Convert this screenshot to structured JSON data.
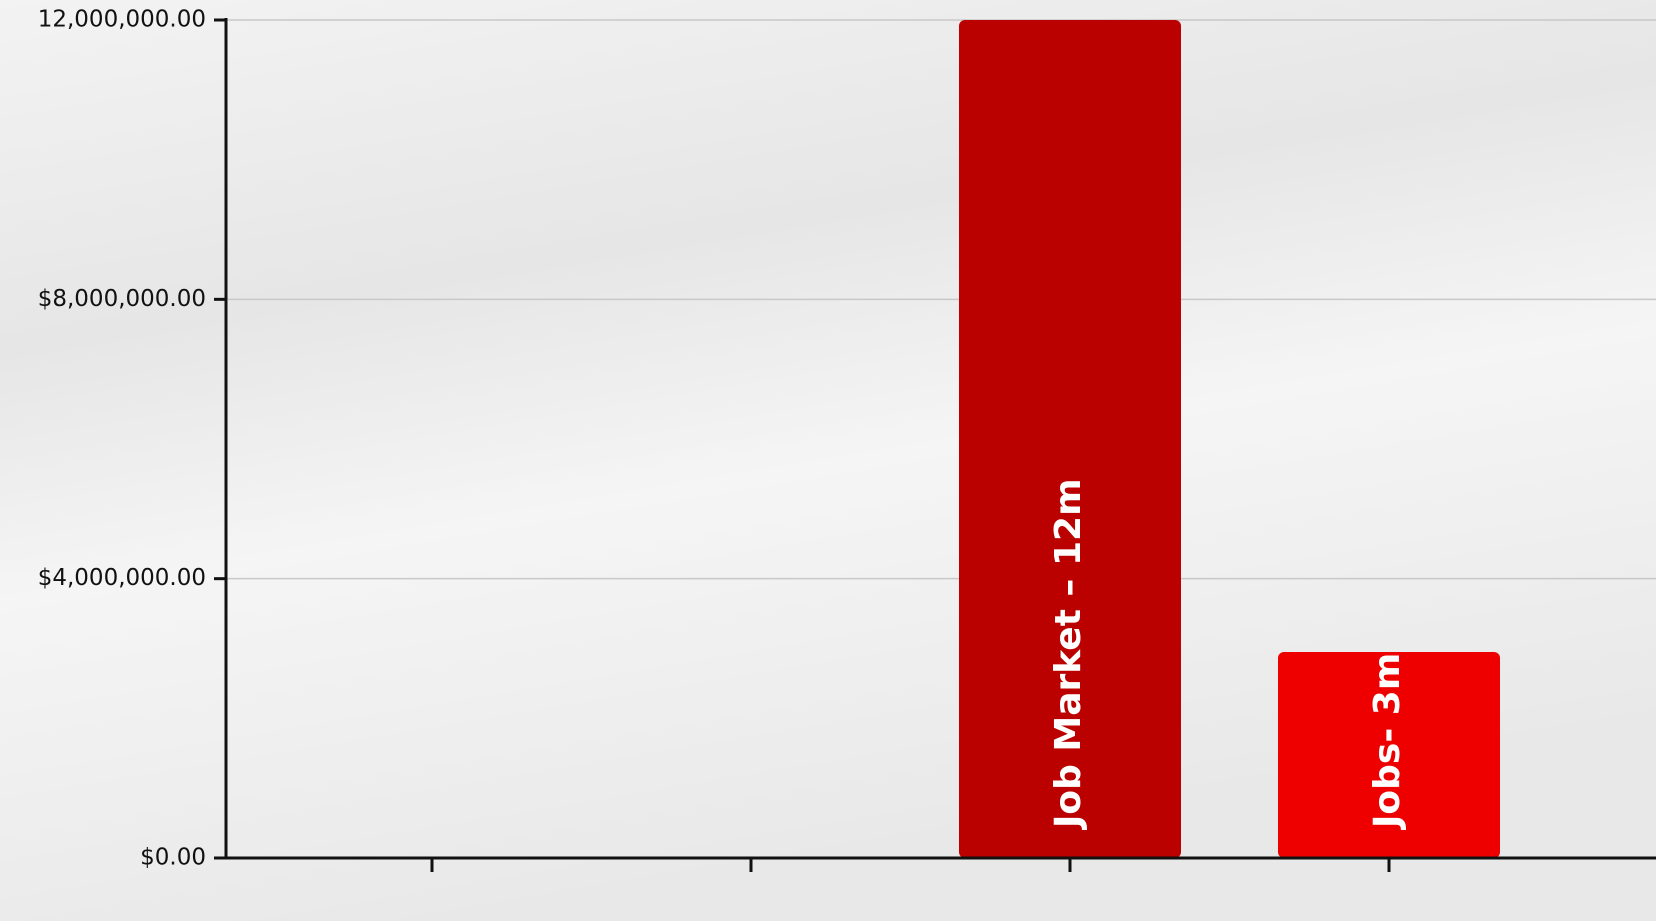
{
  "chart_data": {
    "type": "bar",
    "categories": [
      null,
      null,
      null,
      null
    ],
    "values": [
      0,
      0,
      12000000,
      2950000
    ],
    "value_labels": [
      null,
      null,
      "Job Market – 12m",
      "Jobs- 3m"
    ],
    "colors": [
      "#bb0000",
      "#bb0000",
      "#bb0000",
      "#ee0000"
    ],
    "ylim": [
      0,
      12000000
    ],
    "yticks": [
      {
        "value": 0,
        "label": "$0.00"
      },
      {
        "value": 4000000,
        "label": "$4,000,000.00"
      },
      {
        "value": 8000000,
        "label": "$8,000,000.00"
      },
      {
        "value": 12000000,
        "label": "12,000,000.00"
      }
    ],
    "grid": true
  }
}
